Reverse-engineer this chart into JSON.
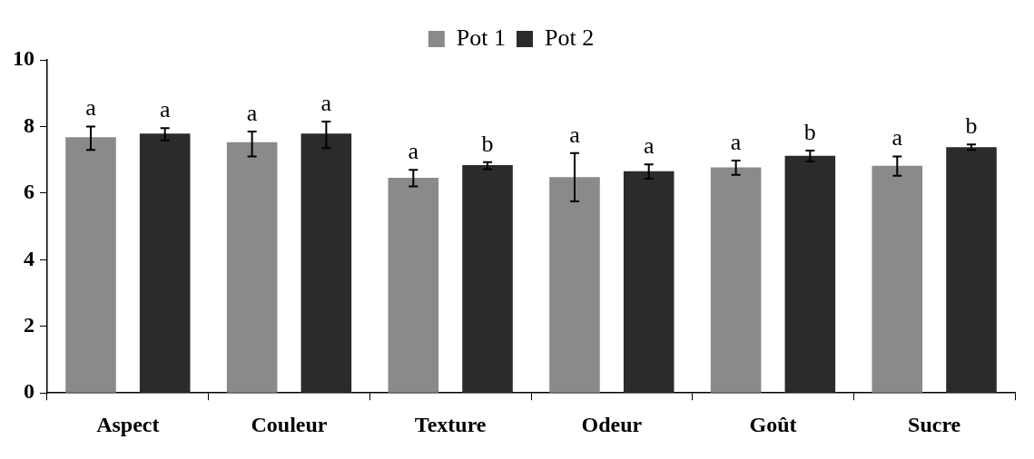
{
  "chart_data": {
    "type": "bar",
    "categories": [
      "Aspect",
      "Couleur",
      "Texture",
      "Odeur",
      "Goût",
      "Sucre"
    ],
    "series": [
      {
        "name": "Pot 1",
        "color": "#8a8a8a",
        "values": [
          7.68,
          7.53,
          6.46,
          6.48,
          6.77,
          6.82
        ],
        "errors": [
          [
            7.3,
            8.0
          ],
          [
            7.1,
            7.85
          ],
          [
            6.2,
            6.7
          ],
          [
            5.75,
            7.2
          ],
          [
            6.55,
            6.98
          ],
          [
            6.52,
            7.1
          ]
        ]
      },
      {
        "name": "Pot 2",
        "color": "#2b2b2b",
        "values": [
          7.79,
          7.79,
          6.84,
          6.66,
          7.12,
          7.38
        ],
        "errors": [
          [
            7.58,
            7.95
          ],
          [
            7.35,
            8.15
          ],
          [
            6.72,
            6.93
          ],
          [
            6.43,
            6.86
          ],
          [
            6.95,
            7.28
          ],
          [
            7.3,
            7.46
          ]
        ]
      }
    ],
    "ylim": [
      0,
      10
    ],
    "yticks": [
      0,
      2,
      4,
      6,
      8,
      10
    ],
    "grid": false,
    "legend": "top",
    "annotations": [
      "a",
      "a",
      "a",
      "a",
      "a",
      "b",
      "a",
      "a",
      "a",
      "b",
      "a",
      "b"
    ]
  }
}
